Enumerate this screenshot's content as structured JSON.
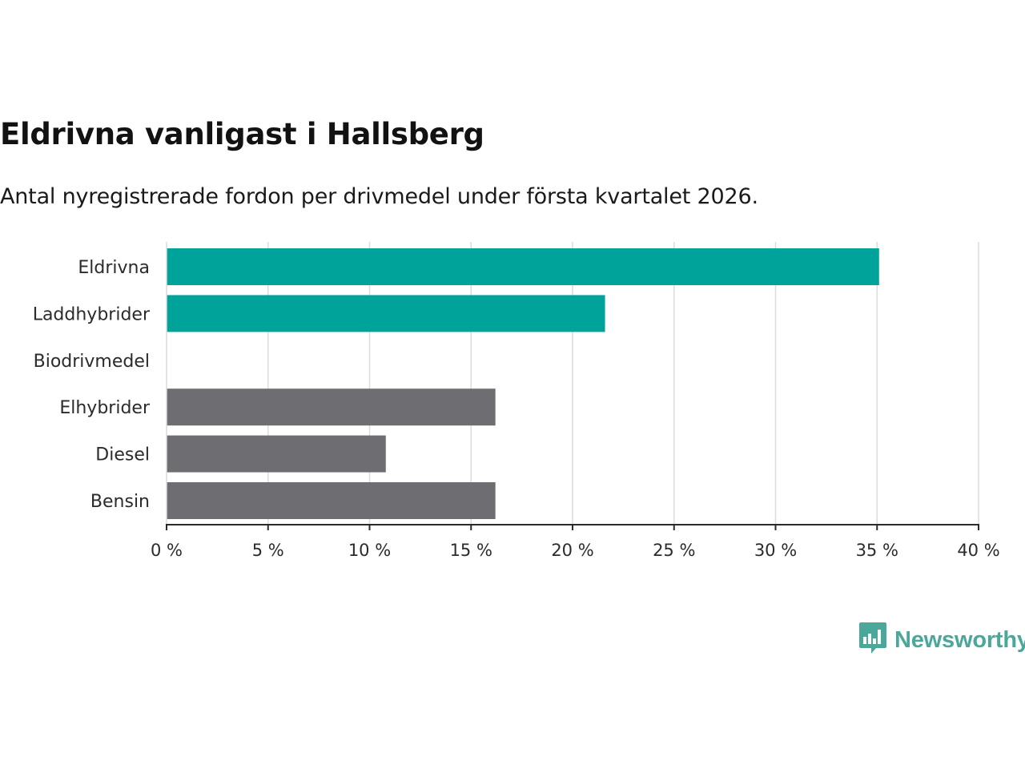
{
  "title": "Eldrivna vanligast i Hallsberg",
  "subtitle": "Antal nyregistrerade fordon per drivmedel under första kvartalet 2026.",
  "chart_data": {
    "type": "bar",
    "orientation": "horizontal",
    "title": "Eldrivna vanligast i Hallsberg",
    "subtitle": "Antal nyregistrerade fordon per drivmedel under första kvartalet 2026.",
    "categories": [
      "Eldrivna",
      "Laddhybrider",
      "Biodrivmedel",
      "Elhybrider",
      "Diesel",
      "Bensin"
    ],
    "values": [
      35.1,
      21.6,
      0,
      16.2,
      10.8,
      16.2
    ],
    "colors": [
      "#00a39a",
      "#00a39a",
      "#00a39a",
      "#6e6d72",
      "#6e6d72",
      "#6e6d72"
    ],
    "xlim": [
      0,
      40
    ],
    "xticks": [
      0,
      5,
      10,
      15,
      20,
      25,
      30,
      35,
      40
    ],
    "tick_labels": [
      "0 %",
      "5 %",
      "10 %",
      "15 %",
      "20 %",
      "25 %",
      "30 %",
      "35 %",
      "40 %"
    ],
    "xlabel": "",
    "ylabel": "",
    "grid": true
  },
  "branding": {
    "logo_text": "Newsworthy",
    "logo_icon": "newsworthy-chart-icon",
    "color": "#4aa79a"
  }
}
